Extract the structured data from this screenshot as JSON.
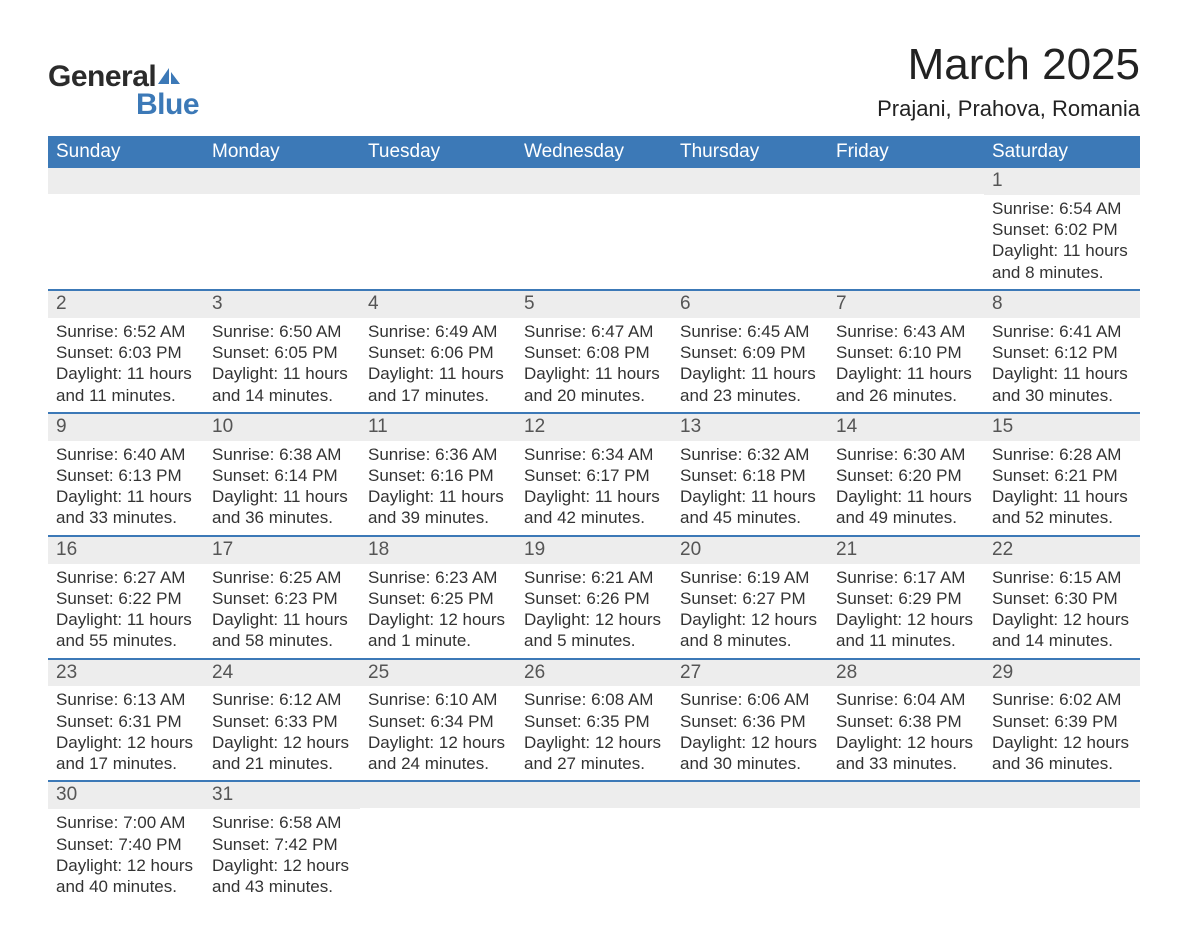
{
  "logo": {
    "word1": "General",
    "word2": "Blue",
    "sail_color": "#3c79b7"
  },
  "title": {
    "month": "March 2025",
    "location": "Prajani, Prahova, Romania"
  },
  "colors": {
    "header_bg": "#3c79b7",
    "header_fg": "#ffffff",
    "daynum_bg": "#ededed",
    "row_divider": "#3c79b7",
    "text": "#333333"
  },
  "day_headers": [
    "Sunday",
    "Monday",
    "Tuesday",
    "Wednesday",
    "Thursday",
    "Friday",
    "Saturday"
  ],
  "weeks": [
    [
      {
        "n": "",
        "sr": "",
        "ss": "",
        "dl": ""
      },
      {
        "n": "",
        "sr": "",
        "ss": "",
        "dl": ""
      },
      {
        "n": "",
        "sr": "",
        "ss": "",
        "dl": ""
      },
      {
        "n": "",
        "sr": "",
        "ss": "",
        "dl": ""
      },
      {
        "n": "",
        "sr": "",
        "ss": "",
        "dl": ""
      },
      {
        "n": "",
        "sr": "",
        "ss": "",
        "dl": ""
      },
      {
        "n": "1",
        "sr": "Sunrise: 6:54 AM",
        "ss": "Sunset: 6:02 PM",
        "dl": "Daylight: 11 hours and 8 minutes."
      }
    ],
    [
      {
        "n": "2",
        "sr": "Sunrise: 6:52 AM",
        "ss": "Sunset: 6:03 PM",
        "dl": "Daylight: 11 hours and 11 minutes."
      },
      {
        "n": "3",
        "sr": "Sunrise: 6:50 AM",
        "ss": "Sunset: 6:05 PM",
        "dl": "Daylight: 11 hours and 14 minutes."
      },
      {
        "n": "4",
        "sr": "Sunrise: 6:49 AM",
        "ss": "Sunset: 6:06 PM",
        "dl": "Daylight: 11 hours and 17 minutes."
      },
      {
        "n": "5",
        "sr": "Sunrise: 6:47 AM",
        "ss": "Sunset: 6:08 PM",
        "dl": "Daylight: 11 hours and 20 minutes."
      },
      {
        "n": "6",
        "sr": "Sunrise: 6:45 AM",
        "ss": "Sunset: 6:09 PM",
        "dl": "Daylight: 11 hours and 23 minutes."
      },
      {
        "n": "7",
        "sr": "Sunrise: 6:43 AM",
        "ss": "Sunset: 6:10 PM",
        "dl": "Daylight: 11 hours and 26 minutes."
      },
      {
        "n": "8",
        "sr": "Sunrise: 6:41 AM",
        "ss": "Sunset: 6:12 PM",
        "dl": "Daylight: 11 hours and 30 minutes."
      }
    ],
    [
      {
        "n": "9",
        "sr": "Sunrise: 6:40 AM",
        "ss": "Sunset: 6:13 PM",
        "dl": "Daylight: 11 hours and 33 minutes."
      },
      {
        "n": "10",
        "sr": "Sunrise: 6:38 AM",
        "ss": "Sunset: 6:14 PM",
        "dl": "Daylight: 11 hours and 36 minutes."
      },
      {
        "n": "11",
        "sr": "Sunrise: 6:36 AM",
        "ss": "Sunset: 6:16 PM",
        "dl": "Daylight: 11 hours and 39 minutes."
      },
      {
        "n": "12",
        "sr": "Sunrise: 6:34 AM",
        "ss": "Sunset: 6:17 PM",
        "dl": "Daylight: 11 hours and 42 minutes."
      },
      {
        "n": "13",
        "sr": "Sunrise: 6:32 AM",
        "ss": "Sunset: 6:18 PM",
        "dl": "Daylight: 11 hours and 45 minutes."
      },
      {
        "n": "14",
        "sr": "Sunrise: 6:30 AM",
        "ss": "Sunset: 6:20 PM",
        "dl": "Daylight: 11 hours and 49 minutes."
      },
      {
        "n": "15",
        "sr": "Sunrise: 6:28 AM",
        "ss": "Sunset: 6:21 PM",
        "dl": "Daylight: 11 hours and 52 minutes."
      }
    ],
    [
      {
        "n": "16",
        "sr": "Sunrise: 6:27 AM",
        "ss": "Sunset: 6:22 PM",
        "dl": "Daylight: 11 hours and 55 minutes."
      },
      {
        "n": "17",
        "sr": "Sunrise: 6:25 AM",
        "ss": "Sunset: 6:23 PM",
        "dl": "Daylight: 11 hours and 58 minutes."
      },
      {
        "n": "18",
        "sr": "Sunrise: 6:23 AM",
        "ss": "Sunset: 6:25 PM",
        "dl": "Daylight: 12 hours and 1 minute."
      },
      {
        "n": "19",
        "sr": "Sunrise: 6:21 AM",
        "ss": "Sunset: 6:26 PM",
        "dl": "Daylight: 12 hours and 5 minutes."
      },
      {
        "n": "20",
        "sr": "Sunrise: 6:19 AM",
        "ss": "Sunset: 6:27 PM",
        "dl": "Daylight: 12 hours and 8 minutes."
      },
      {
        "n": "21",
        "sr": "Sunrise: 6:17 AM",
        "ss": "Sunset: 6:29 PM",
        "dl": "Daylight: 12 hours and 11 minutes."
      },
      {
        "n": "22",
        "sr": "Sunrise: 6:15 AM",
        "ss": "Sunset: 6:30 PM",
        "dl": "Daylight: 12 hours and 14 minutes."
      }
    ],
    [
      {
        "n": "23",
        "sr": "Sunrise: 6:13 AM",
        "ss": "Sunset: 6:31 PM",
        "dl": "Daylight: 12 hours and 17 minutes."
      },
      {
        "n": "24",
        "sr": "Sunrise: 6:12 AM",
        "ss": "Sunset: 6:33 PM",
        "dl": "Daylight: 12 hours and 21 minutes."
      },
      {
        "n": "25",
        "sr": "Sunrise: 6:10 AM",
        "ss": "Sunset: 6:34 PM",
        "dl": "Daylight: 12 hours and 24 minutes."
      },
      {
        "n": "26",
        "sr": "Sunrise: 6:08 AM",
        "ss": "Sunset: 6:35 PM",
        "dl": "Daylight: 12 hours and 27 minutes."
      },
      {
        "n": "27",
        "sr": "Sunrise: 6:06 AM",
        "ss": "Sunset: 6:36 PM",
        "dl": "Daylight: 12 hours and 30 minutes."
      },
      {
        "n": "28",
        "sr": "Sunrise: 6:04 AM",
        "ss": "Sunset: 6:38 PM",
        "dl": "Daylight: 12 hours and 33 minutes."
      },
      {
        "n": "29",
        "sr": "Sunrise: 6:02 AM",
        "ss": "Sunset: 6:39 PM",
        "dl": "Daylight: 12 hours and 36 minutes."
      }
    ],
    [
      {
        "n": "30",
        "sr": "Sunrise: 7:00 AM",
        "ss": "Sunset: 7:40 PM",
        "dl": "Daylight: 12 hours and 40 minutes."
      },
      {
        "n": "31",
        "sr": "Sunrise: 6:58 AM",
        "ss": "Sunset: 7:42 PM",
        "dl": "Daylight: 12 hours and 43 minutes."
      },
      {
        "n": "",
        "sr": "",
        "ss": "",
        "dl": ""
      },
      {
        "n": "",
        "sr": "",
        "ss": "",
        "dl": ""
      },
      {
        "n": "",
        "sr": "",
        "ss": "",
        "dl": ""
      },
      {
        "n": "",
        "sr": "",
        "ss": "",
        "dl": ""
      },
      {
        "n": "",
        "sr": "",
        "ss": "",
        "dl": ""
      }
    ]
  ]
}
